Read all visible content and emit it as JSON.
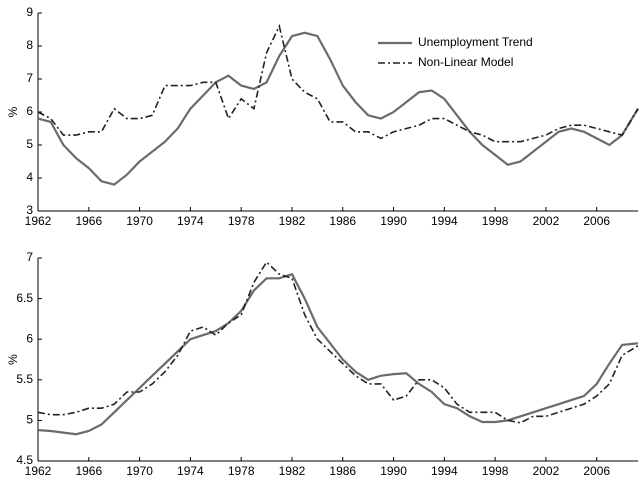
{
  "chart_data": [
    {
      "type": "line",
      "ylabel": "%",
      "legend": "upper right",
      "x": [
        1962,
        1963,
        1964,
        1965,
        1966,
        1967,
        1968,
        1969,
        1970,
        1971,
        1972,
        1973,
        1974,
        1975,
        1976,
        1977,
        1978,
        1979,
        1980,
        1981,
        1982,
        1983,
        1984,
        1985,
        1986,
        1987,
        1988,
        1989,
        1990,
        1991,
        1992,
        1993,
        1994,
        1995,
        1996,
        1997,
        1998,
        1999,
        2000,
        2001,
        2002,
        2003,
        2004,
        2005,
        2006,
        2007,
        2008,
        2009.25
      ],
      "xlim": [
        1962,
        2009.25
      ],
      "xticks": [
        1962,
        1966,
        1970,
        1974,
        1978,
        1982,
        1986,
        1990,
        1994,
        1998,
        2002,
        2006
      ],
      "ylim": [
        3,
        9
      ],
      "yticks": [
        3,
        4,
        5,
        6,
        7,
        8,
        9
      ],
      "series": [
        {
          "name": "Unemployment Trend",
          "color": "#6b6b6b",
          "dash": "solid",
          "values": [
            5.8,
            5.7,
            5.0,
            4.6,
            4.3,
            3.9,
            3.8,
            4.1,
            4.5,
            4.8,
            5.1,
            5.5,
            6.1,
            6.5,
            6.9,
            7.1,
            6.8,
            6.7,
            6.9,
            7.7,
            8.3,
            8.4,
            8.3,
            7.6,
            6.8,
            6.3,
            5.9,
            5.8,
            6.0,
            6.3,
            6.6,
            6.65,
            6.4,
            5.9,
            5.4,
            5.0,
            4.7,
            4.4,
            4.5,
            4.8,
            5.1,
            5.4,
            5.5,
            5.4,
            5.2,
            5.0,
            5.3,
            6.1
          ]
        },
        {
          "name": "Non-Linear Model",
          "color": "#222222",
          "dash": "dashdot",
          "values": [
            6.0,
            5.8,
            5.3,
            5.3,
            5.4,
            5.4,
            6.1,
            5.8,
            5.8,
            5.9,
            6.8,
            6.8,
            6.8,
            6.9,
            6.9,
            5.8,
            6.4,
            6.1,
            7.8,
            8.6,
            7.0,
            6.6,
            6.4,
            5.7,
            5.7,
            5.4,
            5.4,
            5.2,
            5.4,
            5.5,
            5.6,
            5.8,
            5.8,
            5.6,
            5.4,
            5.3,
            5.1,
            5.1,
            5.1,
            5.2,
            5.3,
            5.5,
            5.6,
            5.6,
            5.5,
            5.4,
            5.3,
            6.1
          ]
        }
      ]
    },
    {
      "type": "line",
      "ylabel": "%",
      "x": [
        1962,
        1963,
        1964,
        1965,
        1966,
        1967,
        1968,
        1969,
        1970,
        1971,
        1972,
        1973,
        1974,
        1975,
        1976,
        1977,
        1978,
        1979,
        1980,
        1981,
        1982,
        1983,
        1984,
        1985,
        1986,
        1987,
        1988,
        1989,
        1990,
        1991,
        1992,
        1993,
        1994,
        1995,
        1996,
        1997,
        1998,
        1999,
        2000,
        2001,
        2002,
        2003,
        2004,
        2005,
        2006,
        2007,
        2008,
        2009.25
      ],
      "xlim": [
        1962,
        2009.25
      ],
      "xticks": [
        1962,
        1966,
        1970,
        1974,
        1978,
        1982,
        1986,
        1990,
        1994,
        1998,
        2002,
        2006
      ],
      "ylim": [
        4.5,
        7
      ],
      "yticks": [
        4.5,
        5,
        5.5,
        6,
        6.5,
        7
      ],
      "series": [
        {
          "color": "#6b6b6b",
          "dash": "solid",
          "values": [
            4.88,
            4.87,
            4.85,
            4.83,
            4.87,
            4.95,
            5.1,
            5.25,
            5.4,
            5.55,
            5.7,
            5.85,
            6.0,
            6.05,
            6.1,
            6.2,
            6.35,
            6.6,
            6.75,
            6.75,
            6.8,
            6.5,
            6.15,
            5.95,
            5.75,
            5.6,
            5.5,
            5.55,
            5.57,
            5.58,
            5.45,
            5.35,
            5.2,
            5.15,
            5.05,
            4.98,
            4.98,
            5.0,
            5.05,
            5.1,
            5.15,
            5.2,
            5.25,
            5.3,
            5.45,
            5.7,
            5.93,
            5.95
          ]
        },
        {
          "color": "#222222",
          "dash": "dashdot",
          "values": [
            5.1,
            5.07,
            5.07,
            5.1,
            5.15,
            5.15,
            5.2,
            5.35,
            5.35,
            5.45,
            5.6,
            5.8,
            6.1,
            6.15,
            6.05,
            6.2,
            6.3,
            6.7,
            6.95,
            6.8,
            6.75,
            6.3,
            6.0,
            5.85,
            5.7,
            5.55,
            5.45,
            5.45,
            5.25,
            5.3,
            5.5,
            5.5,
            5.4,
            5.2,
            5.1,
            5.1,
            5.1,
            5.0,
            4.97,
            5.05,
            5.05,
            5.1,
            5.15,
            5.2,
            5.3,
            5.45,
            5.8,
            5.92
          ]
        }
      ]
    }
  ]
}
